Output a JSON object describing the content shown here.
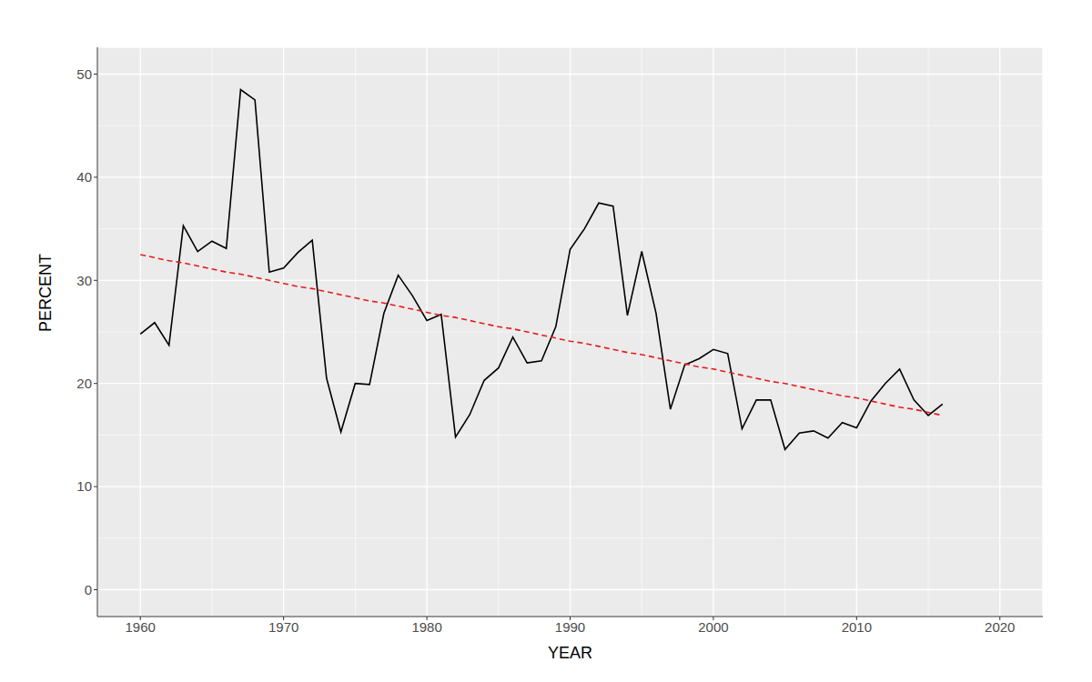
{
  "chart_data": {
    "type": "line",
    "x_label": "YEAR",
    "y_label": "PERCENT",
    "x": [
      1960,
      1961,
      1962,
      1963,
      1964,
      1965,
      1966,
      1967,
      1968,
      1969,
      1970,
      1971,
      1972,
      1973,
      1974,
      1975,
      1976,
      1977,
      1978,
      1979,
      1980,
      1981,
      1982,
      1983,
      1984,
      1985,
      1986,
      1987,
      1988,
      1989,
      1990,
      1991,
      1992,
      1993,
      1994,
      1995,
      1996,
      1997,
      1998,
      1999,
      2000,
      2001,
      2002,
      2003,
      2004,
      2005,
      2006,
      2007,
      2008,
      2009,
      2010,
      2011,
      2012,
      2013,
      2014,
      2015,
      2016
    ],
    "series": [
      {
        "color": "#000000",
        "line_style": "solid",
        "values": [
          24.8,
          25.9,
          23.7,
          35.3,
          32.8,
          33.8,
          33.1,
          48.5,
          47.5,
          30.8,
          31.2,
          32.7,
          33.9,
          20.5,
          15.3,
          20.0,
          19.9,
          26.8,
          30.5,
          28.5,
          26.1,
          26.7,
          14.8,
          17.0,
          20.3,
          21.5,
          24.5,
          22.0,
          22.2,
          25.5,
          33.0,
          35.0,
          37.5,
          37.2,
          26.6,
          32.8,
          26.8,
          17.5,
          21.8,
          22.4,
          23.3,
          22.9,
          15.6,
          18.4,
          18.4,
          13.6,
          15.2,
          15.4,
          14.7,
          16.2,
          15.7,
          18.3,
          20.0,
          21.4,
          18.4,
          16.9,
          18.0
        ]
      },
      {
        "color": "#e8191c",
        "line_style": "dashed",
        "values": [
          32.5,
          32.2,
          31.9,
          31.7,
          31.4,
          31.1,
          30.8,
          30.6,
          30.3,
          30.0,
          29.7,
          29.4,
          29.2,
          28.9,
          28.6,
          28.3,
          28.0,
          27.8,
          27.5,
          27.2,
          26.9,
          26.6,
          26.4,
          26.1,
          25.8,
          25.5,
          25.3,
          25.0,
          24.7,
          24.4,
          24.1,
          23.9,
          23.6,
          23.3,
          23.0,
          22.8,
          22.5,
          22.2,
          21.9,
          21.6,
          21.4,
          21.1,
          20.8,
          20.5,
          20.2,
          20.0,
          19.7,
          19.4,
          19.1,
          18.8,
          18.6,
          18.3,
          18.0,
          17.7,
          17.5,
          17.2,
          16.9
        ]
      }
    ],
    "xlim": [
      1957,
      2023
    ],
    "ylim": [
      -2.6,
      52.6
    ],
    "xticks": [
      1960,
      1970,
      1980,
      1990,
      2000,
      2010,
      2020
    ],
    "yticks": [
      0,
      10,
      20,
      30,
      40,
      50
    ],
    "grid": true,
    "marker": "none"
  }
}
